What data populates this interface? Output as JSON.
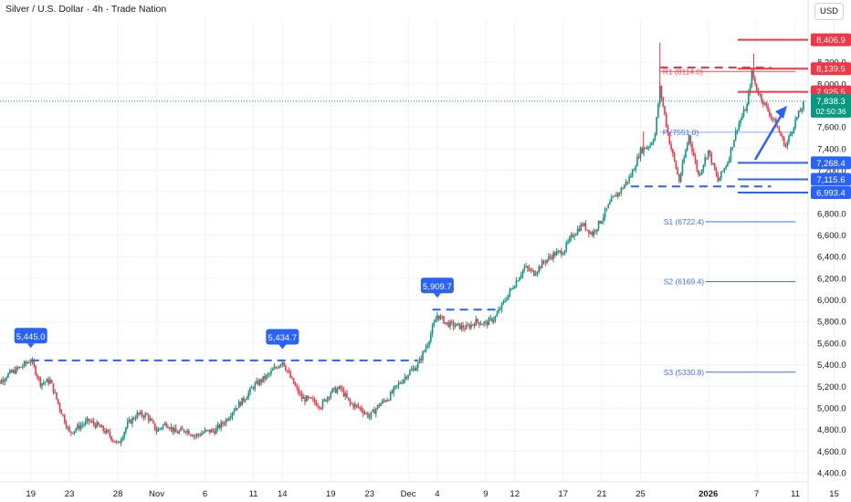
{
  "header": {
    "title": "Silver / U.S. Dollar · 4h · Trade Nation",
    "currency_button": "USD"
  },
  "colors": {
    "up": "#089981",
    "down": "#f23645",
    "blue": "#2962ff",
    "red": "#f23645",
    "pivot": "#2962ff",
    "grid": "#f0f3fa",
    "axis_text": "#131722"
  },
  "chart_data": {
    "type": "candlestick",
    "y_ticks": [
      4400,
      4600,
      4800,
      5000,
      5200,
      5400,
      5600,
      5800,
      6000,
      6200,
      6400,
      6600,
      6800,
      7000,
      7200,
      7400,
      7600,
      7800,
      8000,
      8200
    ],
    "y_tick_labels": [
      "4,400.0",
      "4,600.0",
      "4,800.0",
      "5,000.0",
      "5,200.0",
      "5,400.0",
      "5,600.0",
      "5,800.0",
      "6,000.0",
      "6,200.0",
      "6,400.0",
      "6,600.0",
      "6,800.0",
      "7,000.0",
      "7,200.0",
      "7,400.0",
      "7,600.0",
      "7,800.0",
      "8,000.0",
      "8,200.0"
    ],
    "x_ticks": [
      {
        "label": "15",
        "t": -4.5
      },
      {
        "label": "19",
        "t": -0.5
      },
      {
        "label": "23",
        "t": 3.5
      },
      {
        "label": "28",
        "t": 8.5
      },
      {
        "label": "Nov",
        "t": 12.5
      },
      {
        "label": "6",
        "t": 17.5
      },
      {
        "label": "11",
        "t": 22.5
      },
      {
        "label": "14",
        "t": 25.5
      },
      {
        "label": "19",
        "t": 30.5
      },
      {
        "label": "23",
        "t": 34.5
      },
      {
        "label": "Dec",
        "t": 38.5
      },
      {
        "label": "4",
        "t": 41.5
      },
      {
        "label": "9",
        "t": 46.5
      },
      {
        "label": "12",
        "t": 49.5
      },
      {
        "label": "17",
        "t": 54.5
      },
      {
        "label": "21",
        "t": 58.5
      },
      {
        "label": "25",
        "t": 62.5
      },
      {
        "label": "2026",
        "t": 69.5
      },
      {
        "label": "7",
        "t": 74.5
      },
      {
        "label": "11",
        "t": 78.5
      },
      {
        "label": "15",
        "t": 82.5
      }
    ],
    "path": [
      [
        -4.5,
        5170
      ],
      [
        -3,
        5300
      ],
      [
        -1.5,
        5380
      ],
      [
        -0.5,
        5445
      ],
      [
        0.5,
        5230
      ],
      [
        1.5,
        5250
      ],
      [
        2.5,
        5000
      ],
      [
        3.5,
        4770
      ],
      [
        4.5,
        4830
      ],
      [
        5.5,
        4880
      ],
      [
        6.5,
        4830
      ],
      [
        7.5,
        4760
      ],
      [
        8.5,
        4660
      ],
      [
        9.5,
        4850
      ],
      [
        10.5,
        4940
      ],
      [
        11.5,
        4930
      ],
      [
        12.5,
        4790
      ],
      [
        13.5,
        4860
      ],
      [
        14.5,
        4770
      ],
      [
        15.5,
        4800
      ],
      [
        16.5,
        4740
      ],
      [
        17.5,
        4780
      ],
      [
        18.5,
        4790
      ],
      [
        19.5,
        4870
      ],
      [
        20.5,
        4990
      ],
      [
        21.5,
        5080
      ],
      [
        22.5,
        5200
      ],
      [
        24,
        5300
      ],
      [
        25.5,
        5435
      ],
      [
        26.5,
        5250
      ],
      [
        27.5,
        5090
      ],
      [
        28.5,
        5070
      ],
      [
        29.5,
        5020
      ],
      [
        30.5,
        5150
      ],
      [
        31.5,
        5180
      ],
      [
        32.5,
        5040
      ],
      [
        33.5,
        5000
      ],
      [
        34.5,
        4920
      ],
      [
        35.5,
        5030
      ],
      [
        36.5,
        5100
      ],
      [
        37.5,
        5220
      ],
      [
        38.5,
        5320
      ],
      [
        39.5,
        5400
      ],
      [
        40.5,
        5600
      ],
      [
        41.5,
        5860
      ],
      [
        42.5,
        5780
      ],
      [
        43.5,
        5760
      ],
      [
        44.5,
        5740
      ],
      [
        45.5,
        5800
      ],
      [
        46.5,
        5780
      ],
      [
        47.5,
        5840
      ],
      [
        48.5,
        6000
      ],
      [
        49.5,
        6150
      ],
      [
        50.5,
        6300
      ],
      [
        51.5,
        6250
      ],
      [
        52.5,
        6350
      ],
      [
        53.5,
        6420
      ],
      [
        54.5,
        6450
      ],
      [
        55.5,
        6600
      ],
      [
        56.5,
        6700
      ],
      [
        57.5,
        6610
      ],
      [
        58.5,
        6750
      ],
      [
        59.5,
        6920
      ],
      [
        60.5,
        7020
      ],
      [
        61.5,
        7150
      ],
      [
        62.5,
        7380
      ],
      [
        63.5,
        7440
      ],
      [
        64,
        7530
      ],
      [
        64.5,
        7960
      ],
      [
        65.5,
        7460
      ],
      [
        66.5,
        7100
      ],
      [
        67.5,
        7520
      ],
      [
        68.5,
        7150
      ],
      [
        69.5,
        7380
      ],
      [
        70.5,
        7100
      ],
      [
        71.5,
        7280
      ],
      [
        72.5,
        7600
      ],
      [
        73.5,
        7800
      ],
      [
        74,
        8100
      ],
      [
        74.5,
        7950
      ],
      [
        75.5,
        7780
      ],
      [
        76.5,
        7620
      ],
      [
        77.5,
        7420
      ],
      [
        78.5,
        7660
      ],
      [
        79.5,
        7838
      ]
    ],
    "resistance_levels": [
      8406.9,
      8139.5,
      7925.5
    ],
    "support_levels": [
      7268.4,
      7115.6,
      6993.4
    ],
    "resistance_labels": [
      "8,406.9",
      "8,139.5",
      "7,925.5"
    ],
    "support_labels": [
      "7,268.4",
      "7,115.6",
      "6,993.4"
    ],
    "last_price": {
      "value": 7838.3,
      "label": "7,838.3",
      "countdown": "02:50:36"
    },
    "pivot_lines": [
      {
        "label": "R1 (8114.0)",
        "value": 8114.0
      },
      {
        "label": "P (7551.0)",
        "value": 7551.0
      },
      {
        "label": "S1 (6722.4)",
        "value": 6722.4
      },
      {
        "label": "S2 (6169.4)",
        "value": 6169.4
      },
      {
        "label": "S3 (5330.8)",
        "value": 5330.8
      }
    ],
    "horizontal_breakouts": [
      {
        "label": "5,445.0",
        "value": 5445.0
      },
      {
        "label": "5,434.7",
        "value": 5434.7
      },
      {
        "label": "5,909.7",
        "value": 5909.7
      }
    ],
    "dashed_lines": [
      {
        "from_t": -0.5,
        "to_t": 39.5,
        "value": 5440,
        "color": "blue"
      },
      {
        "from_t": 41,
        "to_t": 48,
        "value": 5909.7,
        "color": "blue"
      },
      {
        "from_t": 61.5,
        "to_t": 76,
        "value": 7050,
        "color": "blue"
      },
      {
        "from_t": 64.5,
        "to_t": 76,
        "value": 8150,
        "color": "red"
      }
    ]
  }
}
